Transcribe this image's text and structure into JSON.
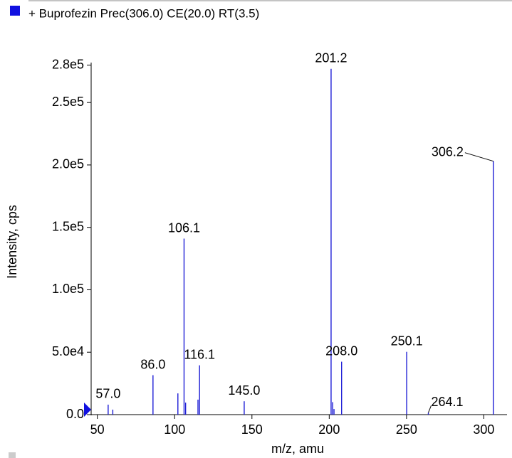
{
  "chart_data": {
    "type": "spectrum",
    "title": "+ Buprofezin Prec(306.0) CE(20.0) RT(3.5)",
    "x_label": "m/z, amu",
    "y_label": "Intensity, cps",
    "color": "#1f1fd6",
    "x": [
      57.0,
      60.0,
      86.0,
      102.1,
      106.1,
      107.1,
      115.1,
      116.1,
      145.0,
      201.2,
      202.2,
      203.1,
      208.0,
      250.1,
      264.1,
      306.2
    ],
    "values": [
      8000,
      4000,
      31600,
      17000,
      141000,
      9600,
      12000,
      39500,
      10700,
      277000,
      10000,
      4500,
      42400,
      50300,
      1500,
      203000
    ],
    "peak_labels": [
      "57.0",
      null,
      "86.0",
      null,
      "106.1",
      null,
      null,
      "116.1",
      "145.0",
      "201.2",
      null,
      null,
      "208.0",
      "250.1",
      "264.1",
      "306.2"
    ],
    "xlim": [
      46,
      315
    ],
    "xticks": [
      50,
      100,
      150,
      200,
      250,
      300
    ],
    "ylim": [
      0,
      282000
    ],
    "yticks": [
      {
        "value": 0,
        "label": "0.0"
      },
      {
        "value": 50000,
        "label": "5.0e4"
      },
      {
        "value": 100000,
        "label": "1.0e5"
      },
      {
        "value": 150000,
        "label": "1.5e5"
      },
      {
        "value": 200000,
        "label": "2.0e5"
      },
      {
        "value": 250000,
        "label": "2.5e5"
      },
      {
        "value": 280000,
        "label": "2.8e5"
      }
    ]
  }
}
